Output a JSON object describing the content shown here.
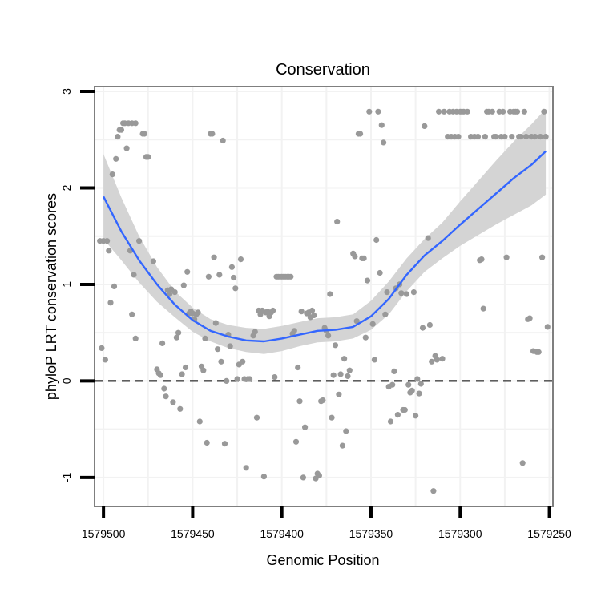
{
  "chart_data": {
    "type": "scatter",
    "title": "Conservation",
    "xlabel": "Genomic Position",
    "ylabel": "phyloP LRT conservation scores",
    "x_reversed": true,
    "xlim": [
      1579505,
      1579248
    ],
    "ylim": [
      -1.3,
      3.05
    ],
    "x_ticks": [
      1579500,
      1579450,
      1579400,
      1579350,
      1579300,
      1579250
    ],
    "x_tick_labels": [
      "1579500",
      "1579450",
      "1579400",
      "1579350",
      "1579300",
      "1579250"
    ],
    "y_ticks": [
      -1,
      0,
      1,
      2,
      3
    ],
    "y_tick_labels": [
      "-1",
      "0",
      "1",
      "2",
      "3"
    ],
    "reference_line": {
      "y": 0,
      "style": "dashed"
    },
    "colors": {
      "points": "#999999",
      "smooth": "#3366ff",
      "band": "#d4d4d4",
      "frame": "#7f7f7f",
      "grid": "#f2f2f2"
    },
    "points": [
      [
        1579502,
        1.45
      ],
      [
        1579500,
        1.45
      ],
      [
        1579498,
        1.45
      ],
      [
        1579501,
        0.34
      ],
      [
        1579499,
        0.22
      ],
      [
        1579497,
        1.35
      ],
      [
        1579496,
        0.81
      ],
      [
        1579495,
        2.14
      ],
      [
        1579494,
        0.98
      ],
      [
        1579493,
        2.3
      ],
      [
        1579492,
        2.53
      ],
      [
        1579491,
        2.6
      ],
      [
        1579490,
        2.6
      ],
      [
        1579489,
        2.67
      ],
      [
        1579488,
        2.67
      ],
      [
        1579486,
        2.67
      ],
      [
        1579484,
        2.67
      ],
      [
        1579482,
        2.67
      ],
      [
        1579487,
        2.41
      ],
      [
        1579485,
        1.35
      ],
      [
        1579484,
        0.69
      ],
      [
        1579483,
        1.1
      ],
      [
        1579482,
        0.44
      ],
      [
        1579480,
        1.45
      ],
      [
        1579478,
        2.56
      ],
      [
        1579477,
        2.56
      ],
      [
        1579476,
        2.32
      ],
      [
        1579475,
        2.32
      ],
      [
        1579472,
        1.24
      ],
      [
        1579470,
        0.12
      ],
      [
        1579469,
        0.08
      ],
      [
        1579468,
        0.06
      ],
      [
        1579467,
        0.39
      ],
      [
        1579466,
        -0.08
      ],
      [
        1579465,
        -0.16
      ],
      [
        1579464,
        0.94
      ],
      [
        1579463,
        0.9
      ],
      [
        1579462,
        0.95
      ],
      [
        1579461,
        -0.22
      ],
      [
        1579460,
        0.92
      ],
      [
        1579459,
        0.45
      ],
      [
        1579458,
        0.5
      ],
      [
        1579457,
        -0.29
      ],
      [
        1579456,
        0.07
      ],
      [
        1579455,
        0.99
      ],
      [
        1579454,
        0.14
      ],
      [
        1579453,
        1.13
      ],
      [
        1579452,
        0.7
      ],
      [
        1579451,
        0.72
      ],
      [
        1579450,
        0.7
      ],
      [
        1579449,
        0.64
      ],
      [
        1579448,
        0.69
      ],
      [
        1579447,
        0.71
      ],
      [
        1579446,
        -0.42
      ],
      [
        1579445,
        0.15
      ],
      [
        1579444,
        0.11
      ],
      [
        1579443,
        0.44
      ],
      [
        1579442,
        -0.64
      ],
      [
        1579441,
        1.08
      ],
      [
        1579440,
        2.56
      ],
      [
        1579439,
        2.56
      ],
      [
        1579438,
        1.28
      ],
      [
        1579437,
        0.6
      ],
      [
        1579436,
        0.33
      ],
      [
        1579435,
        1.1
      ],
      [
        1579434,
        0.2
      ],
      [
        1579433,
        2.49
      ],
      [
        1579432,
        -0.65
      ],
      [
        1579431,
        0.0
      ],
      [
        1579430,
        0.48
      ],
      [
        1579429,
        0.36
      ],
      [
        1579428,
        1.18
      ],
      [
        1579427,
        1.07
      ],
      [
        1579426,
        0.96
      ],
      [
        1579425,
        0.02
      ],
      [
        1579424,
        0.17
      ],
      [
        1579423,
        1.26
      ],
      [
        1579422,
        0.2
      ],
      [
        1579421,
        0.02
      ],
      [
        1579420,
        -0.9
      ],
      [
        1579419,
        0.02
      ],
      [
        1579418,
        0.02
      ],
      [
        1579416,
        0.47
      ],
      [
        1579415,
        0.51
      ],
      [
        1579414,
        -0.38
      ],
      [
        1579413,
        0.73
      ],
      [
        1579412,
        0.69
      ],
      [
        1579411,
        0.73
      ],
      [
        1579410,
        -0.99
      ],
      [
        1579409,
        0.71
      ],
      [
        1579408,
        0.72
      ],
      [
        1579407,
        0.67
      ],
      [
        1579406,
        0.71
      ],
      [
        1579405,
        0.73
      ],
      [
        1579404,
        0.04
      ],
      [
        1579403,
        1.08
      ],
      [
        1579402,
        1.08
      ],
      [
        1579401,
        1.08
      ],
      [
        1579400,
        1.08
      ],
      [
        1579399,
        1.08
      ],
      [
        1579398,
        1.08
      ],
      [
        1579397,
        1.08
      ],
      [
        1579396,
        1.08
      ],
      [
        1579395,
        1.08
      ],
      [
        1579394,
        0.49
      ],
      [
        1579393,
        0.52
      ],
      [
        1579392,
        -0.63
      ],
      [
        1579391,
        0.14
      ],
      [
        1579390,
        -0.21
      ],
      [
        1579389,
        0.72
      ],
      [
        1579388,
        -1.0
      ],
      [
        1579387,
        -0.48
      ],
      [
        1579386,
        0.7
      ],
      [
        1579385,
        0.71
      ],
      [
        1579384,
        0.66
      ],
      [
        1579383,
        0.73
      ],
      [
        1579382,
        0.68
      ],
      [
        1579381,
        -1.01
      ],
      [
        1579380,
        -0.96
      ],
      [
        1579379,
        -0.98
      ],
      [
        1579378,
        -0.21
      ],
      [
        1579377,
        -0.2
      ],
      [
        1579376,
        0.55
      ],
      [
        1579375,
        0.52
      ],
      [
        1579374,
        0.47
      ],
      [
        1579373,
        0.9
      ],
      [
        1579372,
        -0.38
      ],
      [
        1579371,
        0.06
      ],
      [
        1579370,
        0.37
      ],
      [
        1579369,
        1.65
      ],
      [
        1579368,
        -0.14
      ],
      [
        1579367,
        0.07
      ],
      [
        1579366,
        -0.67
      ],
      [
        1579365,
        0.23
      ],
      [
        1579364,
        -0.52
      ],
      [
        1579363,
        0.05
      ],
      [
        1579362,
        0.11
      ],
      [
        1579360,
        1.32
      ],
      [
        1579359,
        1.29
      ],
      [
        1579358,
        0.62
      ],
      [
        1579357,
        2.56
      ],
      [
        1579356,
        2.56
      ],
      [
        1579355,
        1.27
      ],
      [
        1579354,
        1.27
      ],
      [
        1579353,
        0.45
      ],
      [
        1579352,
        1.04
      ],
      [
        1579351,
        2.79
      ],
      [
        1579349,
        0.59
      ],
      [
        1579348,
        0.22
      ],
      [
        1579347,
        1.46
      ],
      [
        1579346,
        2.79
      ],
      [
        1579345,
        1.12
      ],
      [
        1579344,
        2.65
      ],
      [
        1579343,
        2.47
      ],
      [
        1579342,
        0.69
      ],
      [
        1579341,
        0.92
      ],
      [
        1579340,
        -0.06
      ],
      [
        1579339,
        -0.42
      ],
      [
        1579338,
        -0.04
      ],
      [
        1579337,
        0.1
      ],
      [
        1579336,
        0.96
      ],
      [
        1579335,
        -0.35
      ],
      [
        1579334,
        1.0
      ],
      [
        1579333,
        0.91
      ],
      [
        1579332,
        -0.3
      ],
      [
        1579331,
        -0.3
      ],
      [
        1579330,
        0.9
      ],
      [
        1579329,
        -0.04
      ],
      [
        1579328,
        -0.12
      ],
      [
        1579327,
        -0.1
      ],
      [
        1579326,
        0.92
      ],
      [
        1579325,
        -0.36
      ],
      [
        1579324,
        0.02
      ],
      [
        1579323,
        -0.13
      ],
      [
        1579322,
        -0.03
      ],
      [
        1579321,
        0.55
      ],
      [
        1579320,
        2.64
      ],
      [
        1579318,
        1.48
      ],
      [
        1579317,
        0.58
      ],
      [
        1579316,
        0.2
      ],
      [
        1579315,
        -1.14
      ],
      [
        1579314,
        0.26
      ],
      [
        1579313,
        0.22
      ],
      [
        1579312,
        2.79
      ],
      [
        1579310,
        0.23
      ],
      [
        1579309,
        2.79
      ],
      [
        1579307,
        2.53
      ],
      [
        1579306,
        2.79
      ],
      [
        1579305,
        2.53
      ],
      [
        1579304,
        2.79
      ],
      [
        1579303,
        2.53
      ],
      [
        1579302,
        2.79
      ],
      [
        1579301,
        2.53
      ],
      [
        1579300,
        2.79
      ],
      [
        1579299,
        2.79
      ],
      [
        1579298,
        2.79
      ],
      [
        1579296,
        2.79
      ],
      [
        1579294,
        2.53
      ],
      [
        1579292,
        2.53
      ],
      [
        1579290,
        2.53
      ],
      [
        1579289,
        1.25
      ],
      [
        1579288,
        1.26
      ],
      [
        1579287,
        0.75
      ],
      [
        1579286,
        2.53
      ],
      [
        1579285,
        2.79
      ],
      [
        1579284,
        2.79
      ],
      [
        1579282,
        2.79
      ],
      [
        1579281,
        2.53
      ],
      [
        1579280,
        2.53
      ],
      [
        1579278,
        2.79
      ],
      [
        1579277,
        2.53
      ],
      [
        1579276,
        2.79
      ],
      [
        1579275,
        2.53
      ],
      [
        1579274,
        1.28
      ],
      [
        1579272,
        2.79
      ],
      [
        1579271,
        2.53
      ],
      [
        1579270,
        2.79
      ],
      [
        1579269,
        2.79
      ],
      [
        1579268,
        2.79
      ],
      [
        1579267,
        2.53
      ],
      [
        1579266,
        2.53
      ],
      [
        1579265,
        -0.85
      ],
      [
        1579264,
        2.79
      ],
      [
        1579263,
        2.53
      ],
      [
        1579262,
        0.64
      ],
      [
        1579261,
        0.65
      ],
      [
        1579260,
        2.53
      ],
      [
        1579259,
        0.31
      ],
      [
        1579258,
        2.53
      ],
      [
        1579257,
        0.3
      ],
      [
        1579256,
        0.3
      ],
      [
        1579255,
        2.53
      ],
      [
        1579254,
        1.28
      ],
      [
        1579253,
        2.79
      ],
      [
        1579252,
        2.53
      ],
      [
        1579251,
        0.56
      ]
    ],
    "smooth_line": [
      [
        1579500,
        1.91
      ],
      [
        1579490,
        1.55
      ],
      [
        1579480,
        1.25
      ],
      [
        1579470,
        1.0
      ],
      [
        1579460,
        0.79
      ],
      [
        1579450,
        0.63
      ],
      [
        1579440,
        0.52
      ],
      [
        1579430,
        0.46
      ],
      [
        1579420,
        0.42
      ],
      [
        1579410,
        0.41
      ],
      [
        1579400,
        0.44
      ],
      [
        1579390,
        0.48
      ],
      [
        1579380,
        0.52
      ],
      [
        1579370,
        0.53
      ],
      [
        1579360,
        0.56
      ],
      [
        1579350,
        0.67
      ],
      [
        1579340,
        0.85
      ],
      [
        1579330,
        1.1
      ],
      [
        1579320,
        1.3
      ],
      [
        1579310,
        1.45
      ],
      [
        1579300,
        1.62
      ],
      [
        1579290,
        1.78
      ],
      [
        1579280,
        1.94
      ],
      [
        1579270,
        2.1
      ],
      [
        1579260,
        2.24
      ],
      [
        1579252,
        2.38
      ]
    ],
    "confidence_band": [
      [
        1579500,
        2.35,
        1.47
      ],
      [
        1579490,
        1.9,
        1.25
      ],
      [
        1579480,
        1.5,
        1.02
      ],
      [
        1579470,
        1.18,
        0.82
      ],
      [
        1579460,
        0.93,
        0.66
      ],
      [
        1579450,
        0.76,
        0.51
      ],
      [
        1579440,
        0.64,
        0.41
      ],
      [
        1579430,
        0.58,
        0.34
      ],
      [
        1579420,
        0.55,
        0.3
      ],
      [
        1579410,
        0.54,
        0.28
      ],
      [
        1579400,
        0.57,
        0.31
      ],
      [
        1579390,
        0.61,
        0.36
      ],
      [
        1579380,
        0.65,
        0.4
      ],
      [
        1579370,
        0.66,
        0.41
      ],
      [
        1579360,
        0.69,
        0.44
      ],
      [
        1579350,
        0.83,
        0.53
      ],
      [
        1579340,
        1.03,
        0.69
      ],
      [
        1579330,
        1.27,
        0.93
      ],
      [
        1579320,
        1.47,
        1.13
      ],
      [
        1579310,
        1.64,
        1.27
      ],
      [
        1579300,
        1.86,
        1.4
      ],
      [
        1579290,
        2.07,
        1.51
      ],
      [
        1579280,
        2.28,
        1.62
      ],
      [
        1579270,
        2.48,
        1.72
      ],
      [
        1579260,
        2.66,
        1.82
      ],
      [
        1579252,
        2.82,
        1.93
      ]
    ]
  }
}
